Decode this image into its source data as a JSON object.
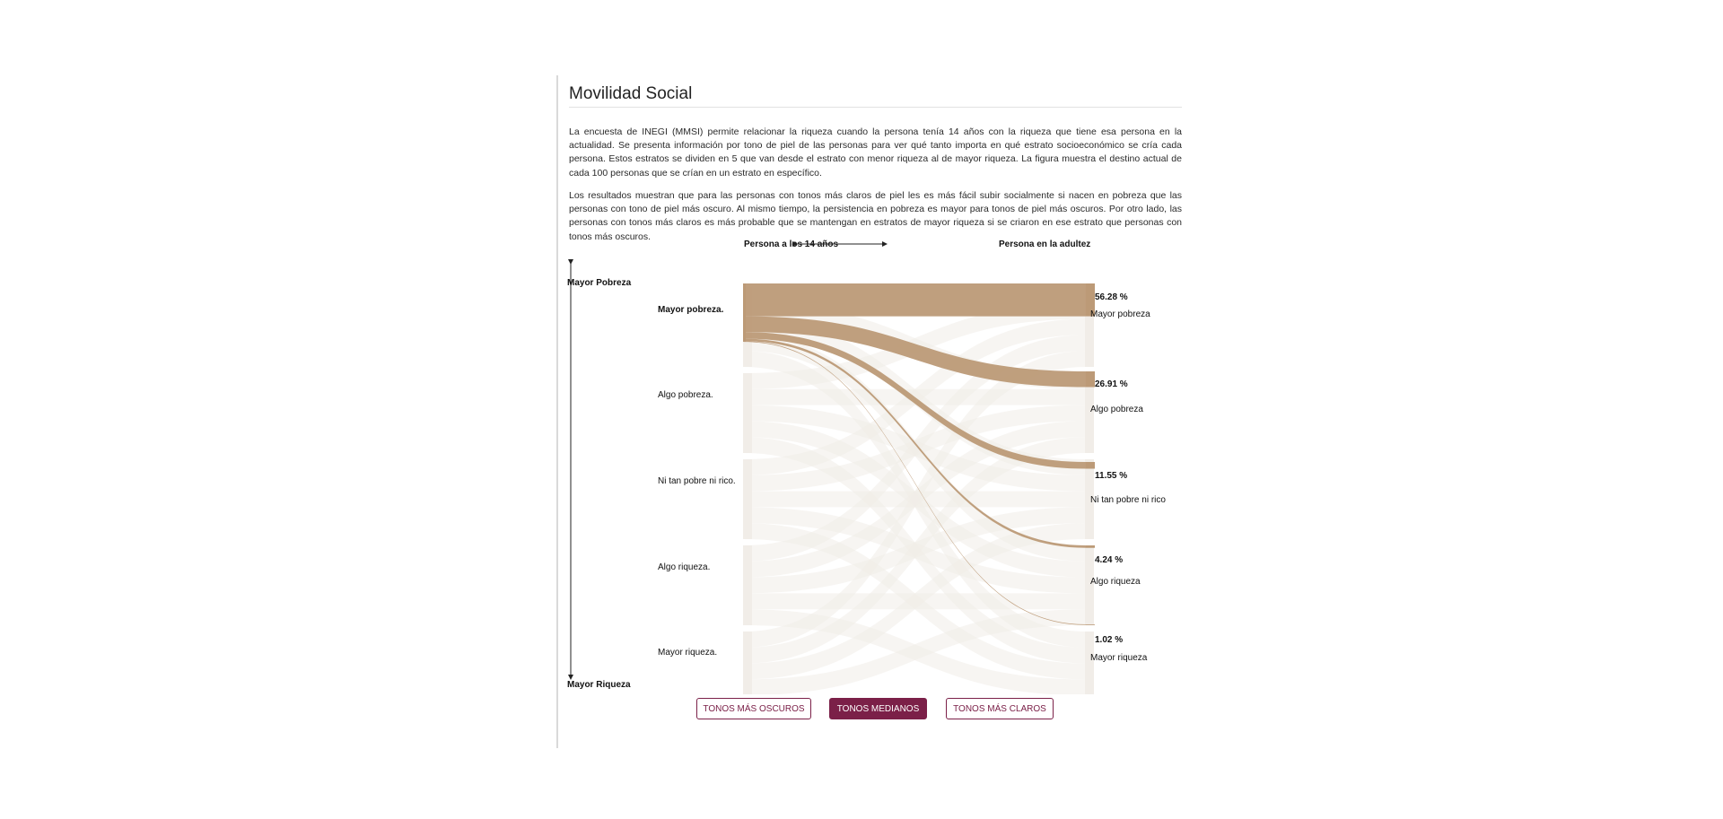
{
  "page": {
    "title": "Movilidad Social",
    "paragraph_1": "La encuesta de INEGI (MMSI) permite relacionar la riqueza cuando la persona tenía 14 años con la riqueza que tiene esa persona en la actualidad. Se presenta información por tono de piel de las personas para ver qué tanto importa en qué estrato socioeconómico se cría cada persona. Estos estratos se dividen en 5 que van desde el estrato con menor riqueza al de mayor riqueza. La figura muestra el destino actual de cada 100 personas que se crían en un estrato en específico.",
    "paragraph_2": "Los resultados muestran que para las personas con tonos más claros de piel les es más fácil subir socialmente si nacen en pobreza que las personas con tono de piel más oscuro. Al mismo tiempo, la persistencia en pobreza es mayor para tonos de piel más oscuros. Por otro lado, las personas con tonos más claros es más probable que se mantengan en estratos de mayor riqueza si se criaron en ese estrato que personas con tonos más oscuros."
  },
  "chart_data": {
    "type": "sankey",
    "left_header": "Persona a los 14 años",
    "right_header": "Persona en la adultez",
    "axis_top_label": "Mayor Pobreza",
    "axis_bottom_label": "Mayor Riqueza",
    "origin_labels": [
      "Mayor pobreza.",
      "Algo pobreza.",
      "Ni tan pobre ni rico.",
      "Algo riqueza.",
      "Mayor riqueza."
    ],
    "destination_labels": [
      "Mayor pobreza",
      "Algo pobreza",
      "Ni tan pobre ni rico",
      "Algo riqueza",
      "Mayor riqueza"
    ],
    "highlighted_origin": "Mayor pobreza.",
    "flows": [
      {
        "from": "Mayor pobreza.",
        "to": "Mayor pobreza",
        "value": 56.28,
        "label": "56.28 %"
      },
      {
        "from": "Mayor pobreza.",
        "to": "Algo pobreza",
        "value": 26.91,
        "label": "26.91 %"
      },
      {
        "from": "Mayor pobreza.",
        "to": "Ni tan pobre ni rico",
        "value": 11.55,
        "label": "11.55 %"
      },
      {
        "from": "Mayor pobreza.",
        "to": "Algo riqueza",
        "value": 4.24,
        "label": "4.24 %"
      },
      {
        "from": "Mayor pobreza.",
        "to": "Mayor riqueza",
        "value": 1.02,
        "label": "1.02 %"
      }
    ],
    "colors": {
      "highlight": "#bc9a77",
      "faded": "#f1ede8",
      "accent": "#7b2048"
    }
  },
  "controls": {
    "buttons": [
      "TONOS MÁS OSCUROS",
      "TONOS MEDIANOS",
      "TONOS MÁS CLAROS"
    ],
    "active": "TONOS MEDIANOS"
  }
}
